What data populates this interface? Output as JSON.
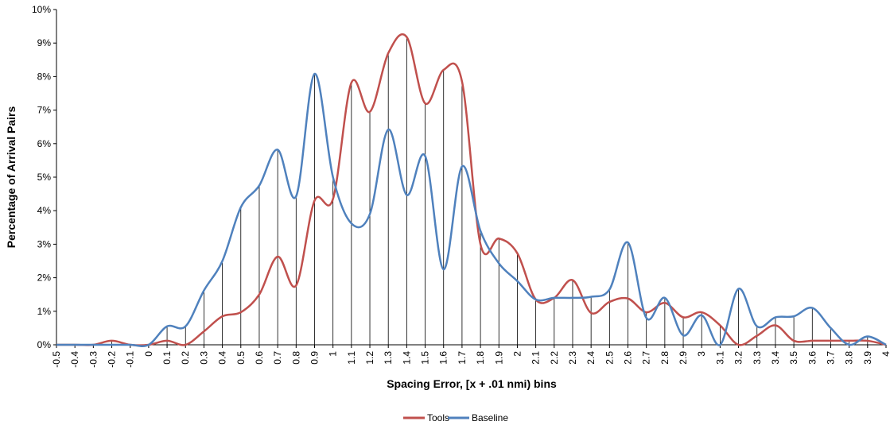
{
  "chart_data": {
    "type": "line",
    "title": "",
    "xlabel": "Spacing Error, [x + .01 nmi) bins",
    "ylabel": "Percentage of Arrival Pairs",
    "ylim": [
      0,
      10
    ],
    "yticks": [
      "0%",
      "1%",
      "2%",
      "3%",
      "4%",
      "5%",
      "6%",
      "7%",
      "8%",
      "9%",
      "10%"
    ],
    "categories": [
      "-0.5",
      "-0.4",
      "-0.3",
      "-0.2",
      "-0.1",
      "0",
      "0.1",
      "0.2",
      "0.3",
      "0.4",
      "0.5",
      "0.6",
      "0.7",
      "0.8",
      "0.9",
      "1",
      "1.1",
      "1.2",
      "1.3",
      "1.4",
      "1.5",
      "1.6",
      "1.7",
      "1.8",
      "1.9",
      "2",
      "2.1",
      "2.2",
      "2.3",
      "2.4",
      "2.5",
      "2.6",
      "2.7",
      "2.8",
      "2.9",
      "3",
      "3.1",
      "3.2",
      "3.3",
      "3.4",
      "3.5",
      "3.6",
      "3.7",
      "3.8",
      "3.9",
      "4"
    ],
    "series": [
      {
        "name": "Tools",
        "color": "#c0504d",
        "values": [
          0,
          0,
          0,
          0.12,
          0,
          0,
          0.12,
          0,
          0.4,
          0.85,
          0.97,
          1.5,
          2.63,
          1.77,
          4.3,
          4.35,
          7.82,
          6.95,
          8.7,
          9.18,
          7.2,
          8.2,
          7.85,
          3.0,
          3.17,
          2.73,
          1.35,
          1.4,
          1.93,
          0.95,
          1.28,
          1.38,
          0.97,
          1.25,
          0.82,
          0.97,
          0.58,
          0,
          0.27,
          0.58,
          0.12,
          0.12,
          0.12,
          0.12,
          0.12,
          0
        ]
      },
      {
        "name": "Baseline",
        "color": "#4f81bd",
        "values": [
          0,
          0,
          0,
          0,
          0,
          0,
          0.55,
          0.55,
          1.62,
          2.5,
          4.1,
          4.75,
          5.82,
          4.43,
          8.08,
          5.0,
          3.62,
          3.9,
          6.42,
          4.47,
          5.63,
          2.25,
          5.32,
          3.4,
          2.43,
          1.9,
          1.35,
          1.4,
          1.4,
          1.43,
          1.65,
          3.05,
          0.8,
          1.4,
          0.28,
          0.88,
          0,
          1.67,
          0.55,
          0.82,
          0.85,
          1.1,
          0.5,
          0,
          0.25,
          0
        ]
      }
    ],
    "legend": "bottom-center",
    "drop_lines": true,
    "grid": false
  }
}
